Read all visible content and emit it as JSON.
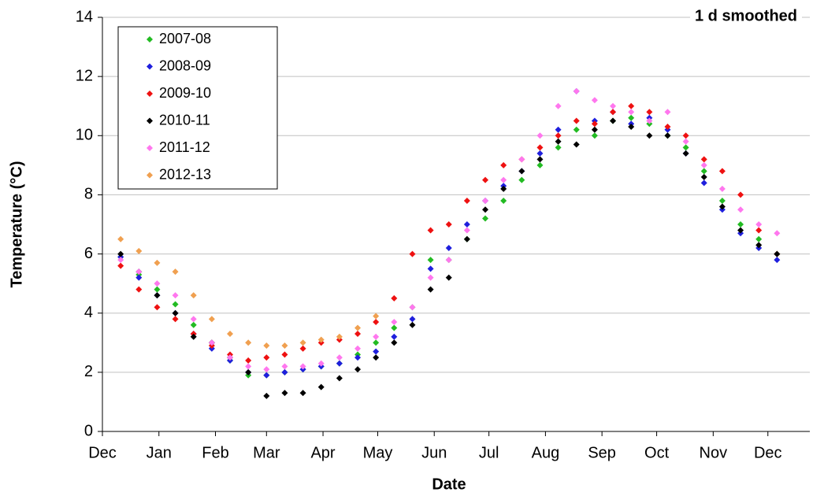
{
  "chart_data": {
    "type": "scatter",
    "title": "1 d smoothed",
    "x_label": "Date",
    "y_label": "Temperature (°C)",
    "xlim": [
      0,
      388
    ],
    "ylim": [
      0,
      14
    ],
    "yticks": [
      0,
      2,
      4,
      6,
      8,
      10,
      12,
      14
    ],
    "xticks": [
      {
        "value": 0,
        "label": "Dec"
      },
      {
        "value": 31,
        "label": "Jan"
      },
      {
        "value": 62,
        "label": "Feb"
      },
      {
        "value": 90,
        "label": "Mar"
      },
      {
        "value": 121,
        "label": "Apr"
      },
      {
        "value": 151,
        "label": "May"
      },
      {
        "value": 182,
        "label": "Jun"
      },
      {
        "value": 212,
        "label": "Jul"
      },
      {
        "value": 243,
        "label": "Aug"
      },
      {
        "value": 274,
        "label": "Sep"
      },
      {
        "value": 304,
        "label": "Oct"
      },
      {
        "value": 335,
        "label": "Nov"
      },
      {
        "value": 365,
        "label": "Dec"
      }
    ],
    "grid": true,
    "legend": "upper left",
    "x": [
      10,
      20,
      30,
      40,
      50,
      60,
      70,
      80,
      90,
      100,
      110,
      120,
      130,
      140,
      150,
      160,
      170,
      180,
      190,
      200,
      210,
      220,
      230,
      240,
      250,
      260,
      270,
      280,
      290,
      300,
      310,
      320,
      330,
      340,
      350,
      360,
      370
    ],
    "series": [
      {
        "name": "2007-08",
        "color": "#22bb22",
        "values": [
          5.9,
          5.3,
          4.8,
          4.3,
          3.6,
          3.0,
          2.4,
          1.9,
          1.9,
          2.0,
          2.1,
          2.2,
          2.3,
          2.6,
          3.0,
          3.5,
          4.2,
          5.8,
          5.8,
          6.5,
          7.2,
          7.8,
          8.5,
          9.0,
          9.6,
          10.2,
          10.0,
          10.5,
          10.6,
          10.4,
          10.0,
          9.6,
          8.8,
          7.8,
          7.0,
          6.5,
          6.0
        ]
      },
      {
        "name": "2008-09",
        "color": "#1f1fdd",
        "values": [
          5.9,
          5.2,
          4.6,
          4.0,
          3.3,
          2.8,
          2.4,
          2.0,
          1.9,
          2.0,
          2.1,
          2.2,
          2.3,
          2.5,
          2.7,
          3.2,
          3.8,
          5.5,
          6.2,
          7.0,
          7.8,
          8.3,
          8.8,
          9.4,
          10.2,
          11.5,
          10.5,
          10.8,
          10.4,
          10.6,
          10.2,
          9.4,
          8.4,
          7.5,
          6.7,
          6.2,
          5.8
        ]
      },
      {
        "name": "2009-10",
        "color": "#ee1111",
        "values": [
          5.6,
          4.8,
          4.2,
          3.8,
          3.3,
          2.9,
          2.6,
          2.4,
          2.5,
          2.6,
          2.8,
          3.0,
          3.1,
          3.3,
          3.7,
          4.5,
          6.0,
          6.8,
          7.0,
          7.8,
          8.5,
          9.0,
          9.2,
          9.6,
          10.0,
          10.5,
          10.4,
          10.8,
          11.0,
          10.8,
          10.3,
          10.0,
          9.2,
          8.8,
          8.0,
          6.8,
          6.0
        ]
      },
      {
        "name": "2010-11",
        "color": "#000000",
        "values": [
          6.0,
          5.4,
          4.6,
          4.0,
          3.2,
          3.0,
          2.5,
          2.0,
          1.2,
          1.3,
          1.3,
          1.5,
          1.8,
          2.1,
          2.5,
          3.0,
          3.6,
          4.8,
          5.2,
          6.5,
          7.5,
          8.2,
          8.8,
          9.2,
          9.8,
          9.7,
          10.2,
          10.5,
          10.3,
          10.0,
          10.0,
          9.4,
          8.6,
          7.6,
          6.8,
          6.3,
          6.0
        ]
      },
      {
        "name": "2011-12",
        "color": "#ff77ee",
        "values": [
          5.8,
          5.4,
          5.0,
          4.6,
          3.8,
          3.0,
          2.5,
          2.2,
          2.1,
          2.2,
          2.2,
          2.3,
          2.5,
          2.8,
          3.2,
          3.7,
          4.2,
          5.2,
          5.8,
          6.8,
          7.8,
          8.5,
          9.2,
          10.0,
          11.0,
          11.5,
          11.2,
          11.0,
          10.8,
          10.5,
          10.8,
          9.8,
          9.0,
          8.2,
          7.5,
          7.0,
          6.7
        ]
      },
      {
        "name": "2012-13",
        "color": "#f0a050",
        "values": [
          6.5,
          6.1,
          5.7,
          5.4,
          4.6,
          3.8,
          3.3,
          3.0,
          2.9,
          2.9,
          3.0,
          3.1,
          3.2,
          3.5,
          3.9,
          null,
          null,
          null,
          null,
          null,
          null,
          null,
          null,
          null,
          null,
          null,
          null,
          null,
          null,
          null,
          null,
          null,
          null,
          null,
          null,
          null,
          null
        ]
      }
    ]
  }
}
